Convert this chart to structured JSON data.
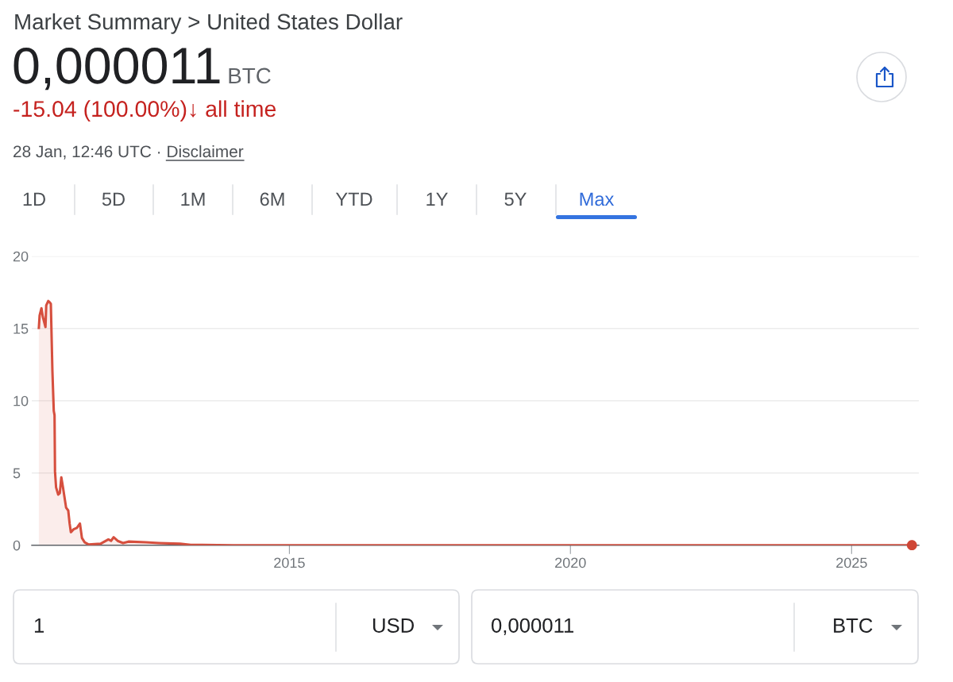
{
  "chart_data": {
    "type": "area",
    "title": "Market Summary > United States Dollar",
    "subtitle": "0,000011",
    "annotations": [
      "BTC",
      "-15.04 (100.00%)↓ all time",
      "28 Jan, 12:46 UTC ·",
      "Disclaimer",
      "1D",
      "5D",
      "1M",
      "6M",
      "YTD",
      "1Y",
      "5Y",
      "Max",
      "1",
      "USD",
      "0,000011",
      "BTC"
    ],
    "series": [
      {
        "color": "#d64f3e",
        "x": [
          "2010-07-18",
          "2010-07-23",
          "2010-08-04",
          "2010-08-13",
          "2010-08-30",
          "2010-09-04",
          "2010-09-17",
          "2010-09-27",
          "2010-10-04",
          "2010-10-14",
          "2010-10-23",
          "2010-10-28",
          "2010-10-31",
          "2010-11-07",
          "2010-11-21",
          "2010-12-01",
          "2010-12-11",
          "2010-12-22",
          "2011-01-01",
          "2011-01-11",
          "2011-01-25",
          "2011-02-03",
          "2011-02-11",
          "2011-03-01",
          "2011-03-22",
          "2011-04-11",
          "2011-04-24",
          "2011-05-12",
          "2011-06-07",
          "2011-08-23",
          "2011-10-13",
          "2011-10-30",
          "2011-11-16",
          "2011-12-12",
          "2012-01-16",
          "2012-02-20",
          "2012-06-11",
          "2012-09-05",
          "2013-01-21",
          "2013-03-31",
          "2014-01-01",
          "2016-01-01",
          "2018-01-01",
          "2020-01-01",
          "2022-01-01",
          "2024-01-01",
          "2026-01-28"
        ],
        "values": [
          15.04,
          15.9,
          16.4,
          15.8,
          15.1,
          16.6,
          16.9,
          16.8,
          16.7,
          12.1,
          9.3,
          9.0,
          5.1,
          4.0,
          3.5,
          3.6,
          4.7,
          4.0,
          3.3,
          2.6,
          2.4,
          1.5,
          0.9,
          1.1,
          1.2,
          1.5,
          0.5,
          0.2,
          0.05,
          0.1,
          0.4,
          0.3,
          0.55,
          0.3,
          0.15,
          0.25,
          0.2,
          0.15,
          0.1,
          0.03,
          0,
          0,
          0,
          0,
          0,
          0,
          1.1e-05
        ]
      },
      {
        "type": "scatter",
        "color": "#cf4636",
        "x": [
          "2026-01-28"
        ],
        "values": [
          1.1e-05
        ]
      }
    ],
    "xlim": [
      "2010-06-02",
      "2026-03-14"
    ],
    "xticks": [
      {
        "value": "2015-01-01",
        "label": "2015"
      },
      {
        "value": "2020-01-01",
        "label": "2020"
      },
      {
        "value": "2025-01-01",
        "label": "2025"
      }
    ],
    "ylim": [
      0,
      20
    ],
    "yticks": [
      0,
      5,
      10,
      15,
      20
    ],
    "grid": "y"
  }
}
